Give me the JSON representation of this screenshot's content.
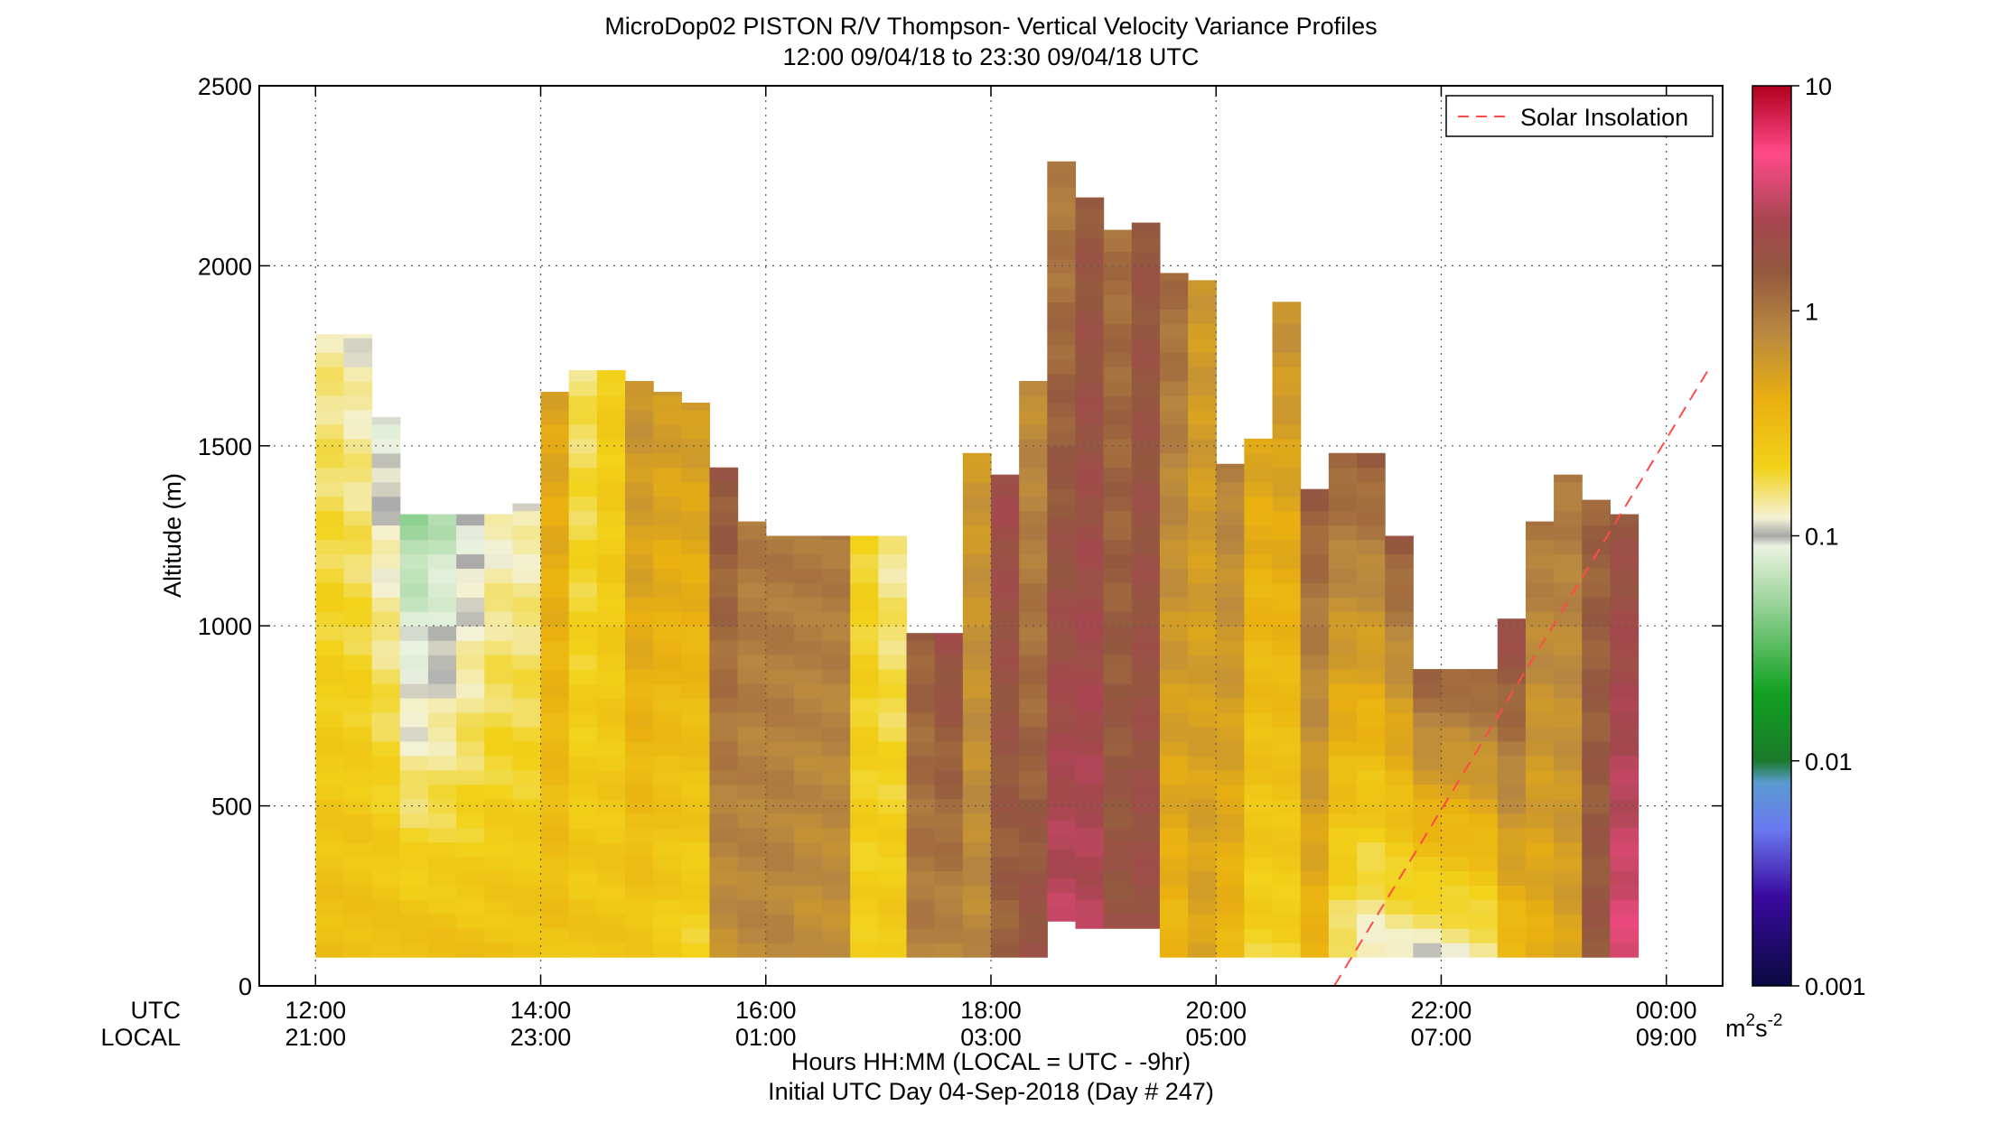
{
  "chart_data": {
    "type": "heatmap",
    "title": "MicroDop02 PISTON R/V Thompson- Vertical Velocity Variance Profiles",
    "subtitle": "12:00 09/04/18 to 23:30 09/04/18  UTC",
    "ylabel": "Altitude (m)",
    "xlabel": "Hours HH:MM  (LOCAL = UTC - -9hr)",
    "xlabel2": "Initial UTC Day 04-Sep-2018 (Day # 247)",
    "x_row_labels": [
      "UTC",
      "LOCAL"
    ],
    "xlim_hours": [
      11.5,
      24.5
    ],
    "ylim": [
      0,
      2500
    ],
    "yticks": [
      0,
      500,
      1000,
      1500,
      2000,
      2500
    ],
    "xticks": [
      {
        "hour": 12,
        "utc": "12:00",
        "local": "21:00"
      },
      {
        "hour": 14,
        "utc": "14:00",
        "local": "23:00"
      },
      {
        "hour": 16,
        "utc": "16:00",
        "local": "01:00"
      },
      {
        "hour": 18,
        "utc": "18:00",
        "local": "03:00"
      },
      {
        "hour": 20,
        "utc": "20:00",
        "local": "05:00"
      },
      {
        "hour": 22,
        "utc": "22:00",
        "local": "07:00"
      },
      {
        "hour": 24,
        "utc": "00:00",
        "local": "09:00"
      }
    ],
    "grid": true,
    "legend": {
      "position": "top-right",
      "entries": [
        {
          "label": "Solar Insolation",
          "color": "#ff4a4a",
          "style": "dashed"
        }
      ]
    },
    "colorbar": {
      "scale": "log",
      "range": [
        0.001,
        10
      ],
      "ticks": [
        "0.001",
        "0.01",
        "0.1",
        "1",
        "10"
      ],
      "unit_base": "m",
      "unit_exp1": "2",
      "unit_mid": "s",
      "unit_exp2": "-2",
      "stops": [
        {
          "v": 0.001,
          "c": "#0a0a40"
        },
        {
          "v": 0.0025,
          "c": "#3a0aa0"
        },
        {
          "v": 0.005,
          "c": "#6a7af0"
        },
        {
          "v": 0.008,
          "c": "#5a9ad0"
        },
        {
          "v": 0.01,
          "c": "#1a7a2a"
        },
        {
          "v": 0.02,
          "c": "#10a020"
        },
        {
          "v": 0.05,
          "c": "#9ad49a"
        },
        {
          "v": 0.09,
          "c": "#eaf2e0"
        },
        {
          "v": 0.1,
          "c": "#a8a8a8"
        },
        {
          "v": 0.12,
          "c": "#f4f2d6"
        },
        {
          "v": 0.2,
          "c": "#f2d21a"
        },
        {
          "v": 0.4,
          "c": "#eab010"
        },
        {
          "v": 0.8,
          "c": "#b88840"
        },
        {
          "v": 1.5,
          "c": "#93593f"
        },
        {
          "v": 2.5,
          "c": "#a64650"
        },
        {
          "v": 5,
          "c": "#ff4a8a"
        },
        {
          "v": 10,
          "c": "#b0001e"
        }
      ]
    },
    "solar_insolation_line": [
      {
        "hour": 21.05,
        "alt": 0
      },
      {
        "hour": 24.4,
        "alt": 1725
      }
    ],
    "bin_minutes": 15,
    "bin_height_m": 40,
    "columns": [
      {
        "hour": 12.0,
        "bottom": 80,
        "top": 1810,
        "base": 0.3,
        "upper": 0.14
      },
      {
        "hour": 12.25,
        "bottom": 80,
        "top": 1810,
        "base": 0.3,
        "upper": 0.12
      },
      {
        "hour": 12.5,
        "bottom": 80,
        "top": 1580,
        "base": 0.3,
        "upper": 0.09
      },
      {
        "hour": 12.75,
        "bottom": 80,
        "top": 1310,
        "base": 0.3,
        "upper": 0.05
      },
      {
        "hour": 13.0,
        "bottom": 80,
        "top": 1310,
        "base": 0.3,
        "upper": 0.06
      },
      {
        "hour": 13.25,
        "bottom": 80,
        "top": 1310,
        "base": 0.28,
        "upper": 0.09
      },
      {
        "hour": 13.5,
        "bottom": 80,
        "top": 1310,
        "base": 0.28,
        "upper": 0.12
      },
      {
        "hour": 13.75,
        "bottom": 80,
        "top": 1340,
        "base": 0.28,
        "upper": 0.12
      },
      {
        "hour": 14.0,
        "bottom": 80,
        "top": 1650,
        "base": 0.28,
        "upper": 0.5
      },
      {
        "hour": 14.25,
        "bottom": 80,
        "top": 1710,
        "base": 0.27,
        "upper": 0.16
      },
      {
        "hour": 14.5,
        "bottom": 80,
        "top": 1710,
        "base": 0.26,
        "upper": 0.22
      },
      {
        "hour": 14.75,
        "bottom": 80,
        "top": 1680,
        "base": 0.25,
        "upper": 0.7
      },
      {
        "hour": 15.0,
        "bottom": 80,
        "top": 1650,
        "base": 0.22,
        "upper": 0.6
      },
      {
        "hour": 15.25,
        "bottom": 80,
        "top": 1620,
        "base": 0.2,
        "upper": 0.6
      },
      {
        "hour": 15.5,
        "bottom": 80,
        "top": 1440,
        "base": 0.7,
        "upper": 1.6
      },
      {
        "hour": 15.75,
        "bottom": 80,
        "top": 1290,
        "base": 0.8,
        "upper": 1.0
      },
      {
        "hour": 16.0,
        "bottom": 80,
        "top": 1250,
        "base": 0.8,
        "upper": 1.0
      },
      {
        "hour": 16.25,
        "bottom": 80,
        "top": 1250,
        "base": 0.7,
        "upper": 1.0
      },
      {
        "hour": 16.5,
        "bottom": 80,
        "top": 1250,
        "base": 0.7,
        "upper": 1.0
      },
      {
        "hour": 16.75,
        "bottom": 80,
        "top": 1250,
        "base": 0.22,
        "upper": 0.2
      },
      {
        "hour": 17.0,
        "bottom": 80,
        "top": 1250,
        "base": 0.25,
        "upper": 0.14
      },
      {
        "hour": 17.25,
        "bottom": 80,
        "top": 980,
        "base": 0.9,
        "upper": 1.4
      },
      {
        "hour": 17.5,
        "bottom": 80,
        "top": 980,
        "base": 0.8,
        "upper": 2.0
      },
      {
        "hour": 17.75,
        "bottom": 80,
        "top": 1480,
        "base": 0.8,
        "upper": 0.6
      },
      {
        "hour": 18.0,
        "bottom": 80,
        "top": 1420,
        "base": 1.3,
        "upper": 2.2
      },
      {
        "hour": 18.25,
        "bottom": 80,
        "top": 1680,
        "base": 1.8,
        "upper": 0.7
      },
      {
        "hour": 18.5,
        "bottom": 180,
        "top": 2290,
        "base": 3.0,
        "upper": 0.9
      },
      {
        "hour": 18.75,
        "bottom": 160,
        "top": 2190,
        "base": 2.8,
        "upper": 1.5
      },
      {
        "hour": 19.0,
        "bottom": 160,
        "top": 2100,
        "base": 1.7,
        "upper": 1.1
      },
      {
        "hour": 19.25,
        "bottom": 160,
        "top": 2120,
        "base": 1.9,
        "upper": 1.6
      },
      {
        "hour": 19.5,
        "bottom": 80,
        "top": 1980,
        "base": 0.35,
        "upper": 1.2
      },
      {
        "hour": 19.75,
        "bottom": 80,
        "top": 1960,
        "base": 0.5,
        "upper": 0.6
      },
      {
        "hour": 20.0,
        "bottom": 80,
        "top": 1450,
        "base": 0.35,
        "upper": 0.9
      },
      {
        "hour": 20.25,
        "bottom": 80,
        "top": 1520,
        "base": 0.2,
        "upper": 0.5
      },
      {
        "hour": 20.5,
        "bottom": 80,
        "top": 1900,
        "base": 0.2,
        "upper": 0.7
      },
      {
        "hour": 20.75,
        "bottom": 80,
        "top": 1380,
        "base": 0.35,
        "upper": 1.5
      },
      {
        "hour": 21.0,
        "bottom": 80,
        "top": 1480,
        "base": 0.15,
        "upper": 1.4
      },
      {
        "hour": 21.25,
        "bottom": 80,
        "top": 1480,
        "base": 0.12,
        "upper": 1.5
      },
      {
        "hour": 21.5,
        "bottom": 80,
        "top": 1250,
        "base": 0.13,
        "upper": 1.6
      },
      {
        "hour": 21.75,
        "bottom": 80,
        "top": 880,
        "base": 0.12,
        "upper": 1.5
      },
      {
        "hour": 22.0,
        "bottom": 80,
        "top": 880,
        "base": 0.13,
        "upper": 1.4
      },
      {
        "hour": 22.25,
        "bottom": 80,
        "top": 880,
        "base": 0.14,
        "upper": 1.5
      },
      {
        "hour": 22.5,
        "bottom": 80,
        "top": 1020,
        "base": 0.3,
        "upper": 2.2
      },
      {
        "hour": 22.75,
        "bottom": 80,
        "top": 1290,
        "base": 0.4,
        "upper": 1.0
      },
      {
        "hour": 23.0,
        "bottom": 80,
        "top": 1420,
        "base": 0.5,
        "upper": 1.0
      },
      {
        "hour": 23.25,
        "bottom": 80,
        "top": 1350,
        "base": 1.6,
        "upper": 1.3
      },
      {
        "hour": 23.5,
        "bottom": 80,
        "top": 1310,
        "base": 4.0,
        "upper": 1.6
      }
    ]
  }
}
